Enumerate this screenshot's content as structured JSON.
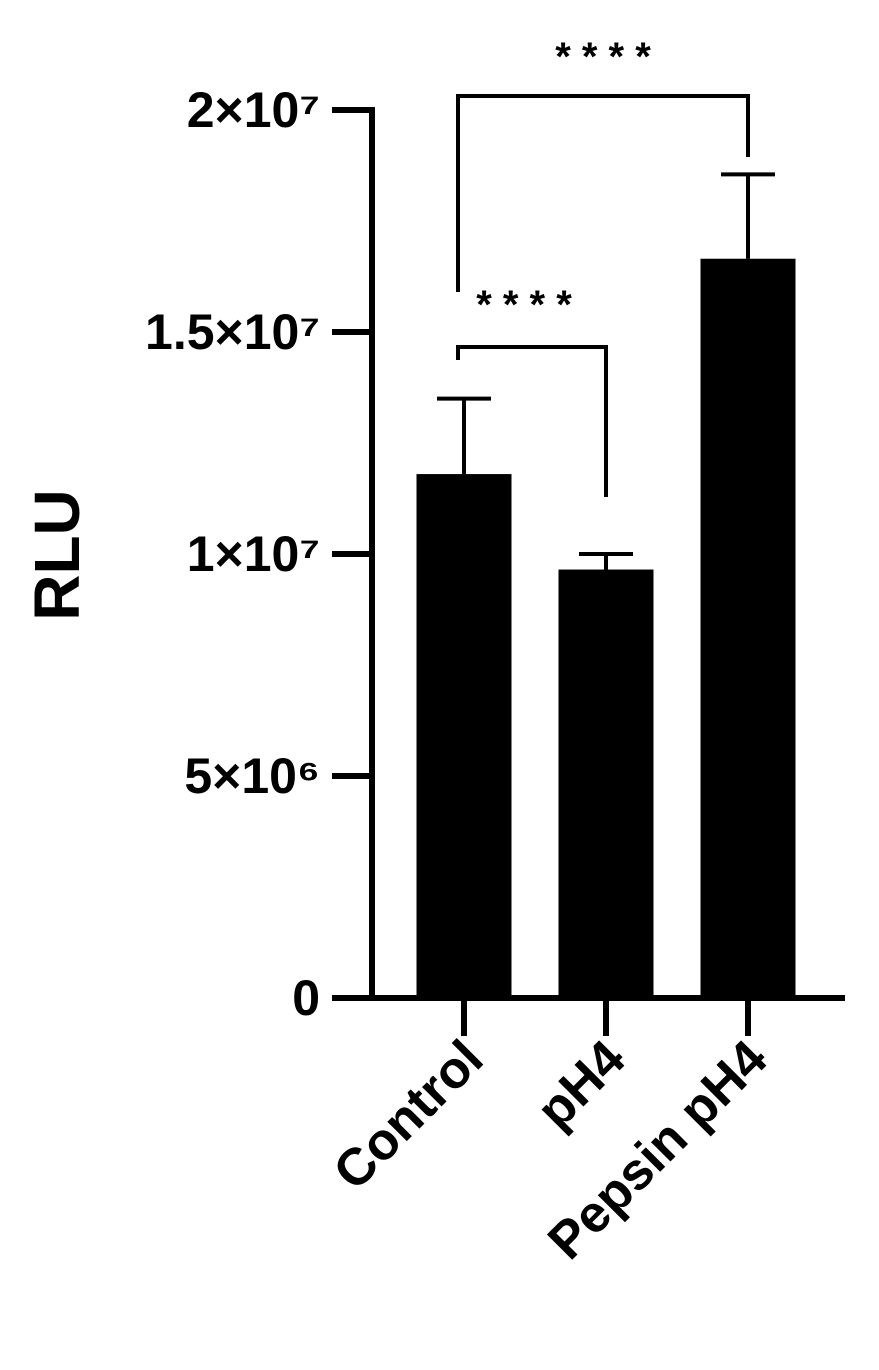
{
  "chart_data": {
    "type": "bar",
    "y_label": "RLU",
    "categories": [
      "Control",
      "pH4",
      "Pepsin pH4"
    ],
    "values": [
      11800000,
      9650000,
      16650000
    ],
    "errors": [
      1700000,
      350000,
      1900000
    ],
    "color": "#000000",
    "ylim": [
      0,
      20000000
    ],
    "yticks": [
      0,
      {
        "value": 5000000,
        "label": "5×10⁶"
      },
      {
        "value": 10000000,
        "label": "1×10⁷"
      },
      {
        "value": 15000000,
        "label": "1.5×10⁷"
      },
      {
        "value": 20000000,
        "label": "2×10⁷"
      }
    ],
    "annotations": [
      {
        "text": "* * * *"
      },
      {
        "text": "* * * *"
      }
    ]
  }
}
